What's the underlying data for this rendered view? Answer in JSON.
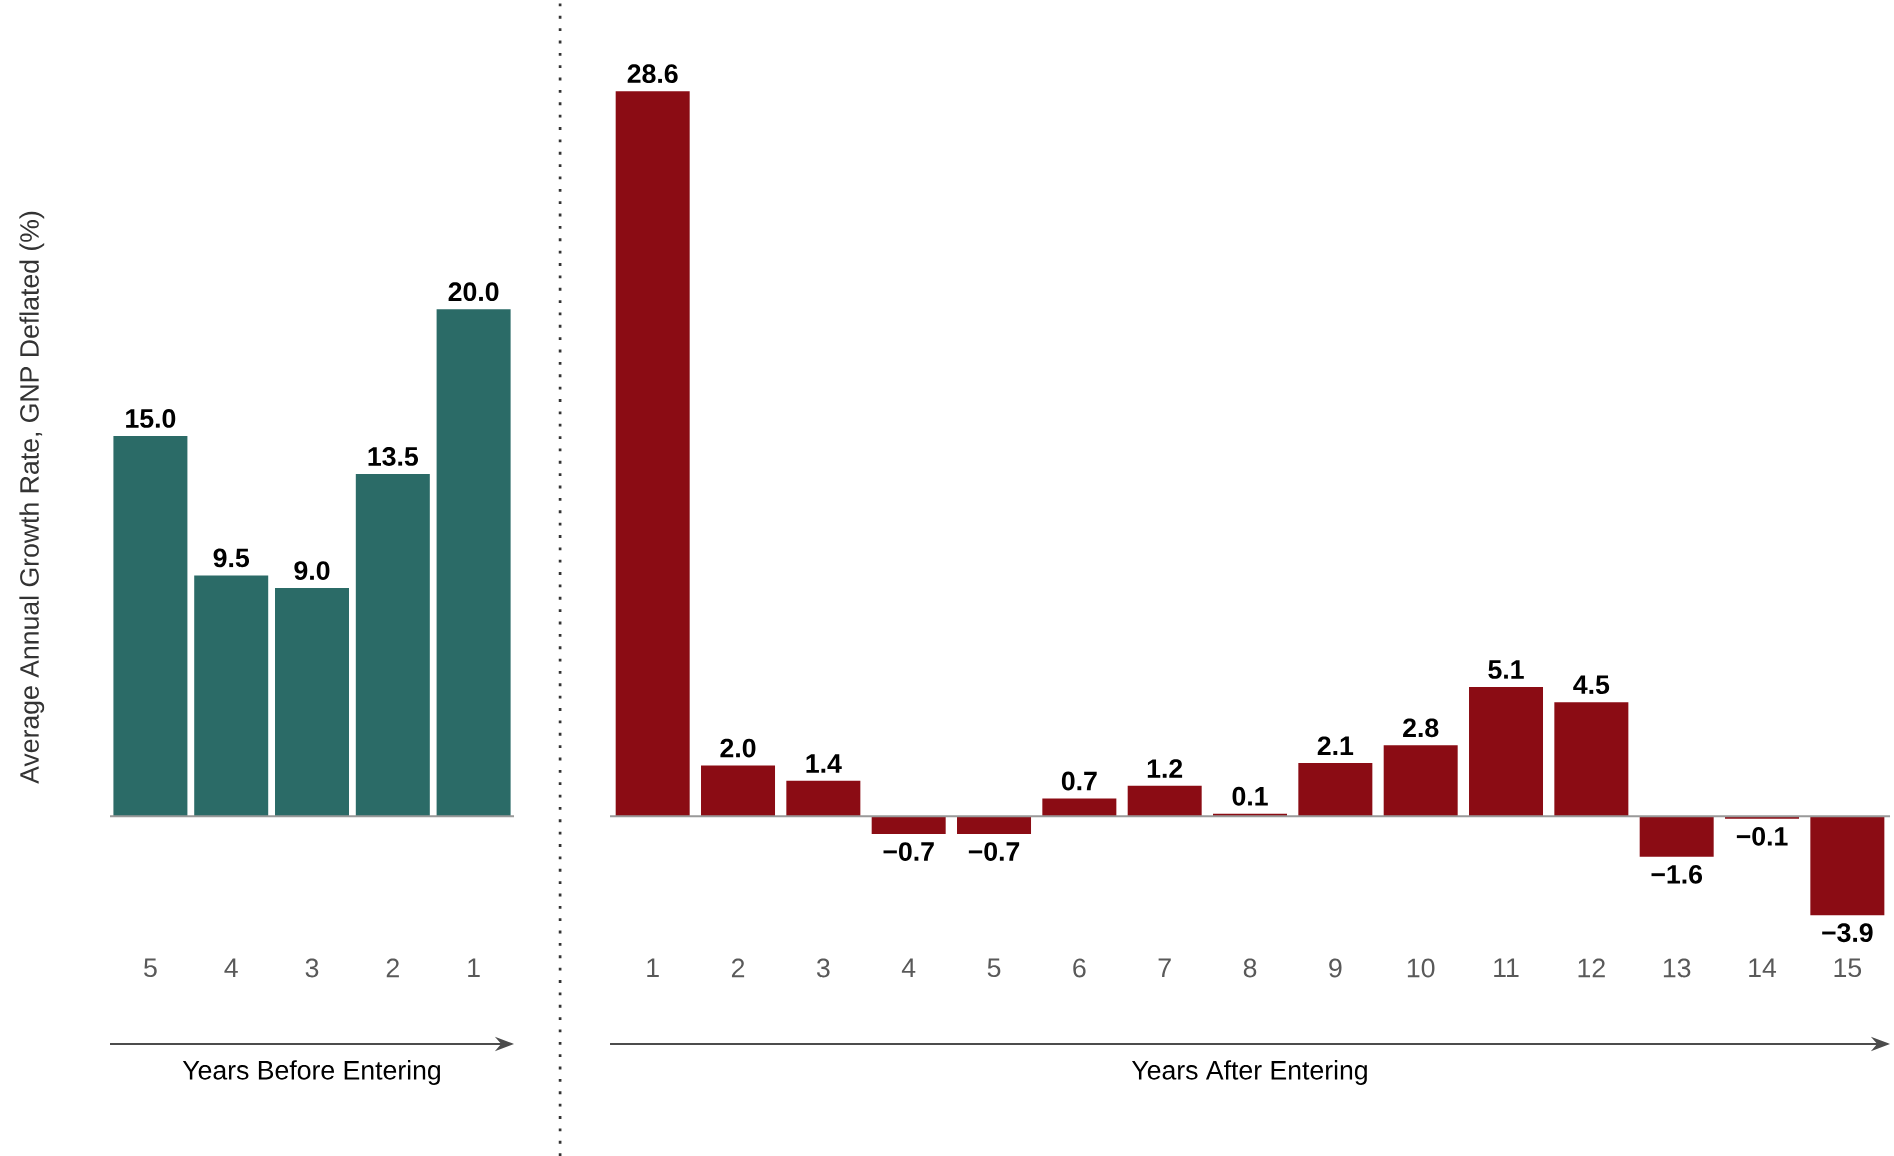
{
  "chart_data": [
    {
      "type": "bar",
      "categories": [
        "5",
        "4",
        "3",
        "2",
        "1"
      ],
      "values": [
        15.0,
        9.5,
        9.0,
        13.5,
        20.0
      ],
      "value_labels": [
        "15.0",
        "9.5",
        "9.0",
        "13.5",
        "20.0"
      ],
      "color": "#2b6b67",
      "ylabel": "Average Annual Growth Rate, GNP Deflated (%)",
      "xlabel": "Years Before Entering",
      "tick_labels": "x"
    },
    {
      "type": "bar",
      "categories": [
        "1",
        "2",
        "3",
        "4",
        "5",
        "6",
        "7",
        "8",
        "9",
        "10",
        "11",
        "12",
        "13",
        "14",
        "15"
      ],
      "values": [
        28.6,
        2.0,
        1.4,
        -0.7,
        -0.7,
        0.7,
        1.2,
        0.1,
        2.1,
        2.8,
        5.1,
        4.5,
        -1.6,
        -0.1,
        -3.9
      ],
      "value_labels": [
        "28.6",
        "2.0",
        "1.4",
        "−0.7",
        "−0.7",
        "0.7",
        "1.2",
        "0.1",
        "2.1",
        "2.8",
        "5.1",
        "4.5",
        "−1.6",
        "−0.1",
        "−3.9"
      ],
      "color": "#8b0c14",
      "xlabel": "Years After Entering",
      "tick_labels": "x"
    }
  ]
}
